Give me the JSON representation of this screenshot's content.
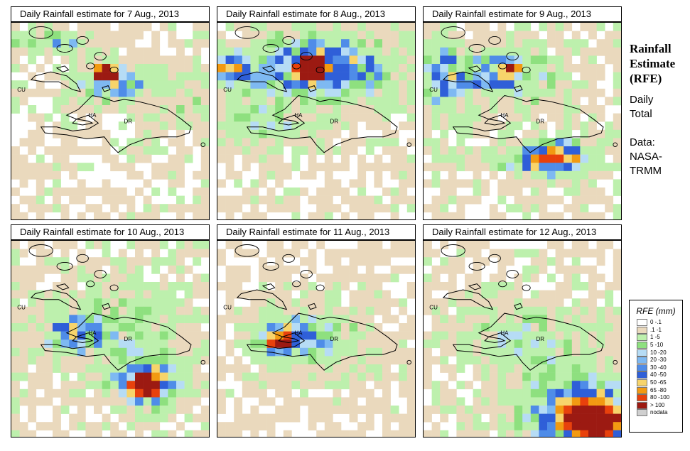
{
  "sidebar": {
    "title_lines": [
      "Rainfall",
      "Estimate",
      "(RFE)"
    ],
    "period_lines": [
      "Daily",
      "Total"
    ],
    "source_lines": [
      "Data:",
      "NASA-",
      "TRMM"
    ]
  },
  "place_labels": [
    "CU",
    "HA",
    "DR"
  ],
  "panels": [
    {
      "title": "Daily Rainfall estimate for  7 Aug., 2013"
    },
    {
      "title": "Daily Rainfall estimate for  8 Aug., 2013"
    },
    {
      "title": "Daily Rainfall estimate for  9 Aug., 2013"
    },
    {
      "title": "Daily Rainfall estimate for  10 Aug., 2013"
    },
    {
      "title": "Daily Rainfall estimate for  11 Aug., 2013"
    },
    {
      "title": "Daily Rainfall estimate for  12 Aug., 2013"
    }
  ],
  "legend": {
    "title": "RFE (mm)",
    "items": [
      {
        "label": "0 -.1",
        "color": "#ffffff"
      },
      {
        "label": ".1 -1",
        "color": "#ead9bd"
      },
      {
        "label": "1 -5",
        "color": "#bdf0ad"
      },
      {
        "label": "5 -10",
        "color": "#8ee07f"
      },
      {
        "label": "10 -20",
        "color": "#b6dcf5"
      },
      {
        "label": "20 -30",
        "color": "#7eb9f2"
      },
      {
        "label": "30 -40",
        "color": "#4f8ce8"
      },
      {
        "label": "40 -50",
        "color": "#2f5fd8"
      },
      {
        "label": "50 -65",
        "color": "#f7d46b"
      },
      {
        "label": "65 -80",
        "color": "#f29a12"
      },
      {
        "label": "80 -100",
        "color": "#e8410c"
      },
      {
        "label": "> 100",
        "color": "#9c1a12"
      },
      {
        "label": "nodata",
        "color": "#cfcfcf"
      }
    ]
  }
}
